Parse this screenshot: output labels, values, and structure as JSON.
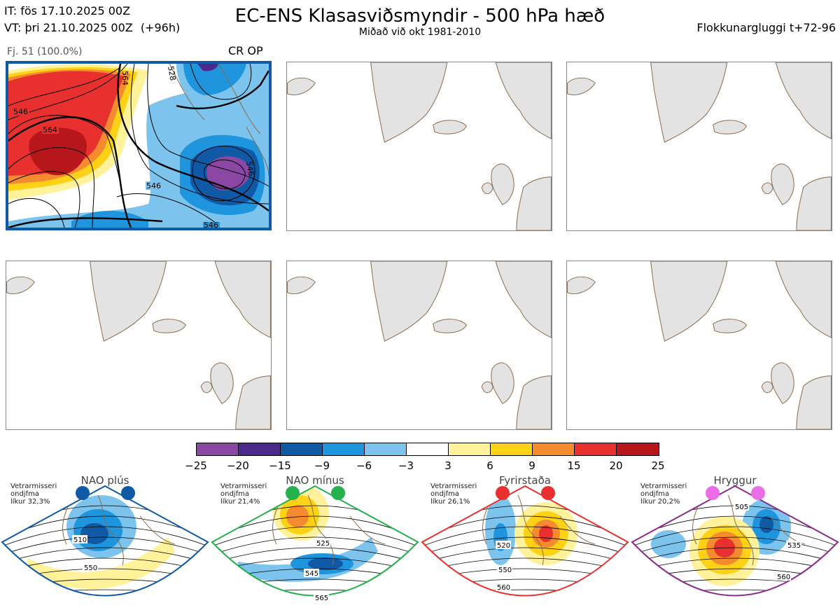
{
  "header": {
    "init_time": "IT: fös 17.10.2025 00Z",
    "valid_time": "VT: þri 21.10.2025 00Z",
    "lead": "(+96h)",
    "title": "EC-ENS Klasasviðsmyndir - 500 hPa hæð",
    "subtitle": "Miðað við okt 1981-2010",
    "window": "Flokkunargluggi t+72-96"
  },
  "cluster": {
    "label": "Fj. 51 (100.0%)",
    "regime": "CR OP",
    "contour_labels": [
      "546",
      "546",
      "564",
      "546",
      "564",
      "546",
      "528"
    ]
  },
  "colorbar": {
    "ticks": [
      "−25",
      "−20",
      "−15",
      "−9",
      "−6",
      "−3",
      "3",
      "6",
      "9",
      "15",
      "20",
      "25"
    ],
    "colors": [
      "#8a47a3",
      "#4b2a8c",
      "#1059a4",
      "#1e95dd",
      "#7cc4ee",
      "#ffffff",
      "#fff29a",
      "#fcd116",
      "#f48b2e",
      "#e8312e",
      "#b5171b"
    ]
  },
  "regimes": [
    {
      "name": "NAO plús",
      "note1": "Vetrarmisseri",
      "note2": "ondjfma",
      "prob": "líkur 32,3%",
      "dot_color": "#1059a4",
      "labels": [
        "510",
        "550"
      ]
    },
    {
      "name": "NAO mínus",
      "note1": "Vetrarmisseri",
      "note2": "ondjfma",
      "prob": "líkur 21,4%",
      "dot_color": "#24b04b",
      "labels": [
        "525",
        "545",
        "565"
      ]
    },
    {
      "name": "Fyrirstaða",
      "note1": "Vetrarmisseri",
      "note2": "ondjfma",
      "prob": "líkur 26,1%",
      "dot_color": "#e8312e",
      "labels": [
        "520",
        "550",
        "560"
      ]
    },
    {
      "name": "Hryggur",
      "note1": "Vetrarmisseri",
      "note2": "ondjfma",
      "prob": "líkur 20,2%",
      "dot_color": "#ea6ee8",
      "labels": [
        "505",
        "535",
        "560"
      ]
    }
  ],
  "colors": {
    "border_blue": "#1059a4",
    "border_green": "#24b04b",
    "border_red": "#e8312e",
    "border_purple": "#8b2b8c",
    "land": "#e3e3e3",
    "coast": "#8a6a4a"
  }
}
